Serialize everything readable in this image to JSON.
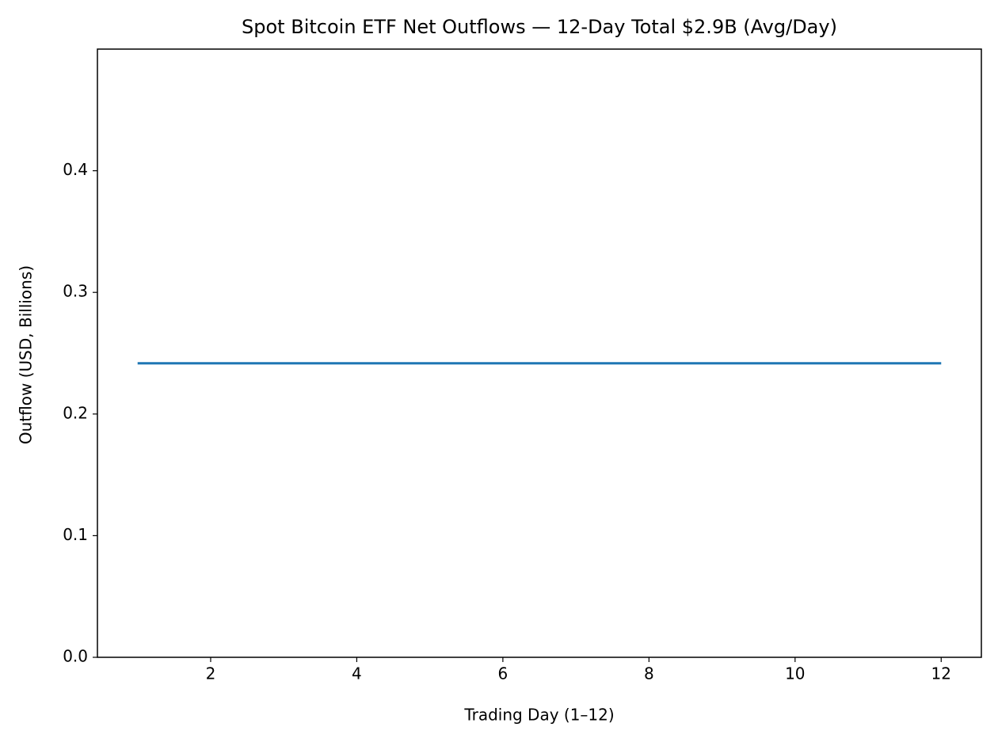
{
  "chart_data": {
    "type": "line",
    "title": "Spot Bitcoin ETF Net Outflows — 12-Day Total $2.9B (Avg/Day)",
    "x_label": "Trading Day (1–12)",
    "y_label": "Outflow (USD, Billions)",
    "x": [
      1,
      2,
      3,
      4,
      5,
      6,
      7,
      8,
      9,
      10,
      11,
      12
    ],
    "series": [
      {
        "name": "Avg/Day",
        "color": "#1f77b4",
        "values": [
          0.2417,
          0.2417,
          0.2417,
          0.2417,
          0.2417,
          0.2417,
          0.2417,
          0.2417,
          0.2417,
          0.2417,
          0.2417,
          0.2417
        ]
      }
    ],
    "xlim": [
      0.45,
      12.55
    ],
    "xticks": [
      2,
      4,
      6,
      8,
      10,
      12
    ],
    "ylim": [
      0,
      0.5
    ],
    "yticks": [
      {
        "value": 0,
        "label": "0.0"
      },
      0.1,
      0.2,
      0.3,
      0.4
    ],
    "grid": false
  }
}
